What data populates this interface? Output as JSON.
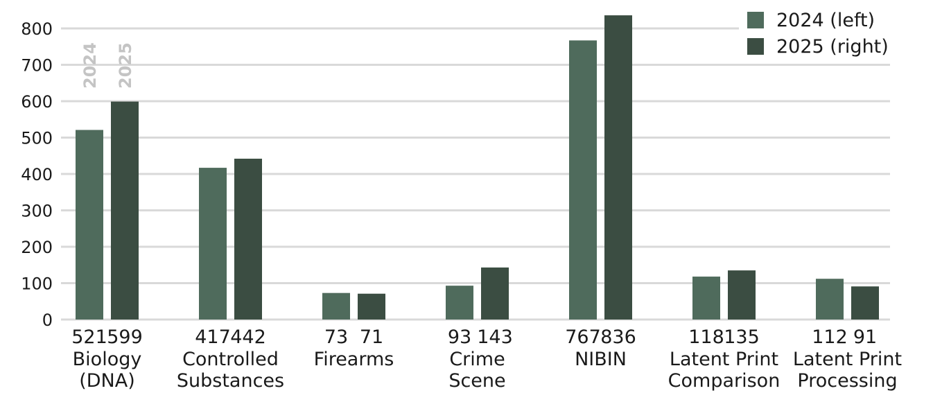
{
  "chart_data": {
    "type": "bar",
    "categories": [
      [
        "Biology",
        "(DNA)"
      ],
      [
        "Controlled",
        "Substances"
      ],
      [
        "Firearms"
      ],
      [
        "Crime",
        "Scene"
      ],
      [
        "NIBIN"
      ],
      [
        "Latent Print",
        "Comparison"
      ],
      [
        "Latent Print",
        "Processing"
      ]
    ],
    "series": [
      {
        "name": "2024 (left)",
        "short": "2024",
        "color": "#4f6b5c",
        "values": [
          521,
          417,
          73,
          93,
          767,
          118,
          112
        ]
      },
      {
        "name": "2025 (right)",
        "short": "2025",
        "color": "#3b4d42",
        "values": [
          599,
          442,
          71,
          143,
          836,
          135,
          91
        ]
      }
    ],
    "ylim": [
      0,
      800
    ],
    "yticks": [
      0,
      100,
      200,
      300,
      400,
      500,
      600,
      700,
      800
    ],
    "grid": true,
    "legend": "top-right",
    "title": "",
    "xlabel": "",
    "ylabel": ""
  }
}
